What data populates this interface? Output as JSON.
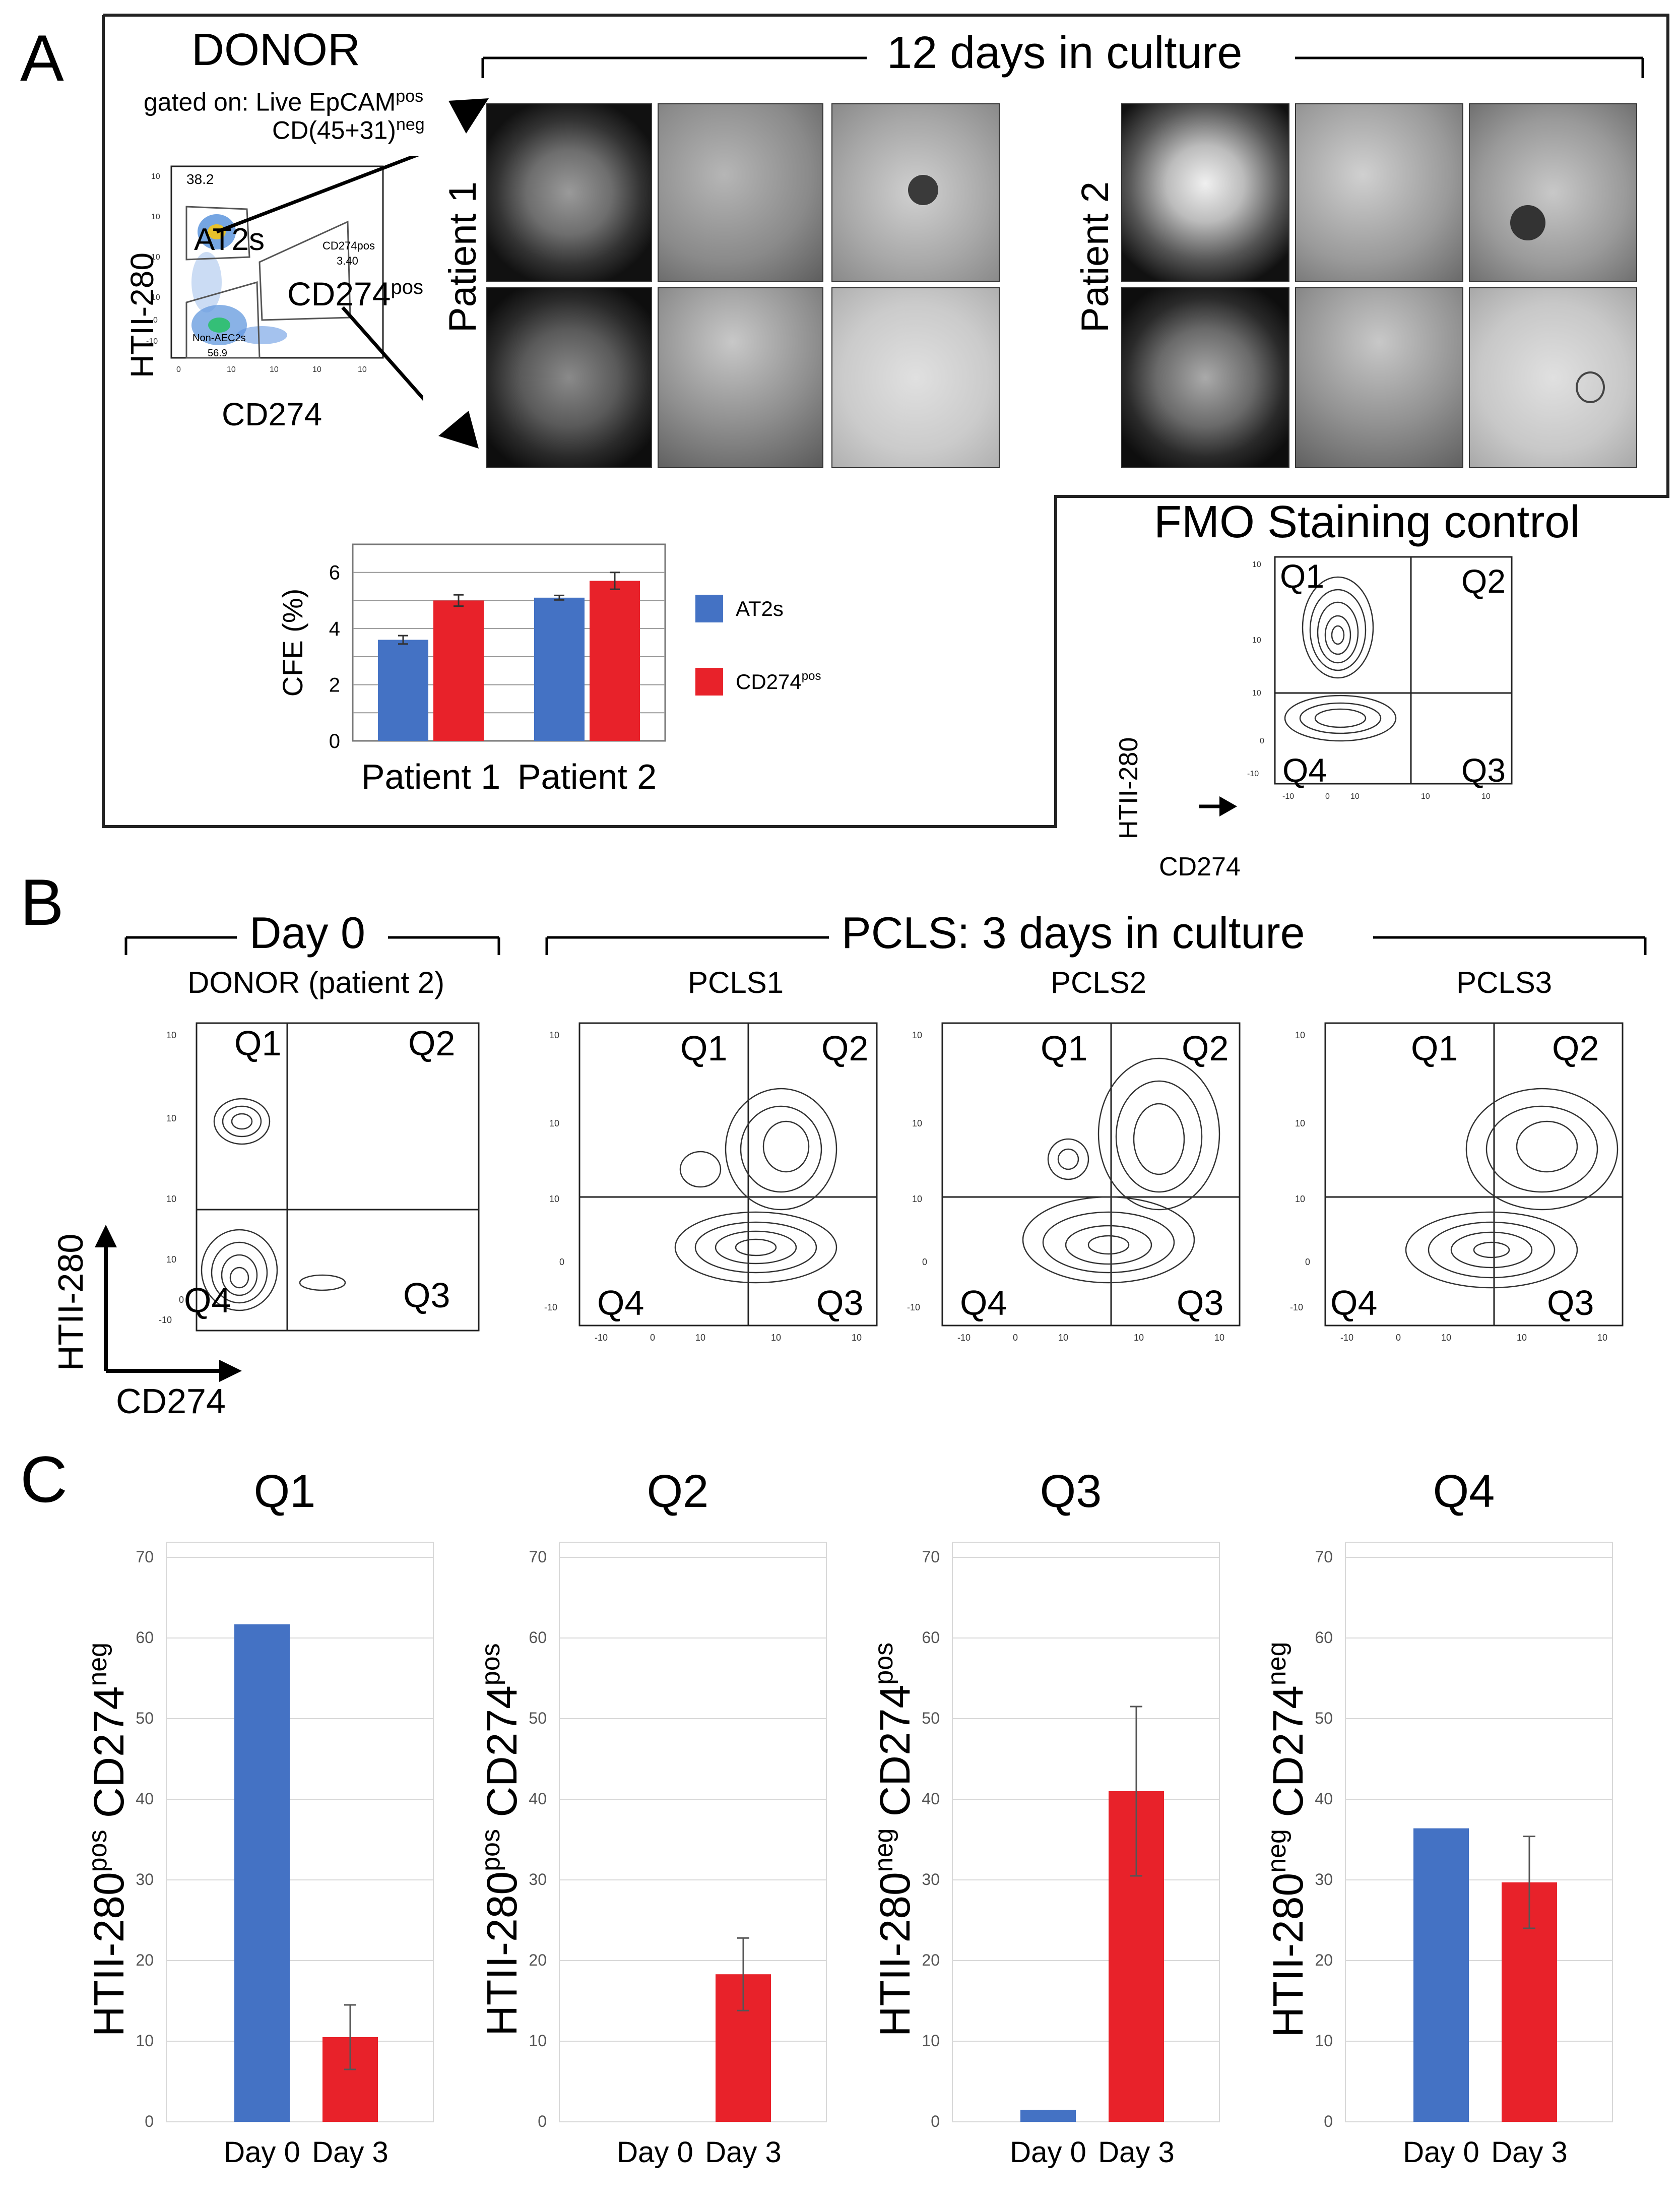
{
  "panels": {
    "A": "A",
    "B": "B",
    "C": "C"
  },
  "panel_a": {
    "donor_title": "DONOR",
    "gating_line1": "gated on: Live EpCAM",
    "gating_line1_sup": "pos",
    "gating_line2": "CD(45+31)",
    "gating_line2_sup": "neg",
    "culture_title": "12 days in culture",
    "patient1": "Patient 1",
    "patient2": "Patient 2",
    "dot_plot": {
      "ylabel": "HTII-280",
      "xlabel": "CD274",
      "gate_at2s_label": "AT2s",
      "gate_at2s_value": "38.2",
      "gate_cd274_label": "CD274",
      "gate_cd274_sup": "pos",
      "gate_cd274_small": "CD274pos",
      "gate_cd274_value": "3.40",
      "gate_nonaec_label": "Non-AEC2s",
      "gate_nonaec_value": "56.9"
    },
    "fmo": {
      "title": "FMO Staining control",
      "q1": "Q1",
      "q2": "Q2",
      "q3": "Q3",
      "q4": "Q4",
      "ylabel": "HTII-280",
      "xlabel": "CD274"
    },
    "legend": {
      "at2s": "AT2s",
      "cd274": "CD274",
      "cd274_sup": "pos"
    }
  },
  "panel_b": {
    "day0_title": "Day 0",
    "pcls_title": "PCLS: 3 days in culture",
    "plots": [
      {
        "label": "DONOR (patient 2)"
      },
      {
        "label": "PCLS1"
      },
      {
        "label": "PCLS2"
      },
      {
        "label": "PCLS3"
      }
    ],
    "quadrants": [
      "Q1",
      "Q2",
      "Q3",
      "Q4"
    ],
    "ylabel": "HTII-280",
    "xlabel": "CD274"
  },
  "colors": {
    "blue": "#4472c4",
    "red": "#e8222a"
  },
  "chart_data": [
    {
      "type": "bar",
      "ylabel": "CFE (%)",
      "categories": [
        "Patient 1",
        "Patient 2"
      ],
      "series": [
        {
          "name": "AT2s",
          "values": [
            3.6,
            5.1
          ],
          "errors": [
            0.15,
            0.08
          ],
          "color": "#4472c4"
        },
        {
          "name": "CD274pos",
          "values": [
            5.0,
            5.7
          ],
          "errors": [
            0.2,
            0.3
          ],
          "color": "#e8222a"
        }
      ],
      "yticks": [
        0,
        2,
        4,
        6
      ],
      "ylim": [
        0,
        7
      ],
      "grid": true,
      "legend": "right"
    },
    {
      "type": "bar",
      "title": "Q1",
      "ylabel": "HTII-280",
      "ylabel_sup": "pos",
      "ylabel2": " CD274",
      "ylabel2_sup": "neg",
      "categories": [
        "Day 0",
        "Day 3"
      ],
      "values": [
        61.7,
        10.5
      ],
      "errors": [
        null,
        4.0
      ],
      "colors": [
        "#4472c4",
        "#e8222a"
      ],
      "yticks": [
        0,
        10,
        20,
        30,
        40,
        50,
        60,
        70
      ],
      "ylim": [
        0,
        70
      ],
      "grid": true
    },
    {
      "type": "bar",
      "title": "Q2",
      "ylabel": "HTII-280",
      "ylabel_sup": "pos",
      "ylabel2": " CD274",
      "ylabel2_sup": "pos",
      "categories": [
        "Day 0",
        "Day 3"
      ],
      "values": [
        0,
        18.3
      ],
      "errors": [
        null,
        4.5
      ],
      "colors": [
        "#4472c4",
        "#e8222a"
      ],
      "yticks": [
        0,
        10,
        20,
        30,
        40,
        50,
        60,
        70
      ],
      "ylim": [
        0,
        70
      ],
      "grid": true
    },
    {
      "type": "bar",
      "title": "Q3",
      "ylabel": "HTII-280",
      "ylabel_sup": "neg",
      "ylabel2": " CD274",
      "ylabel2_sup": "pos",
      "categories": [
        "Day 0",
        "Day 3"
      ],
      "values": [
        1.5,
        41.0
      ],
      "errors": [
        null,
        10.5
      ],
      "colors": [
        "#4472c4",
        "#e8222a"
      ],
      "yticks": [
        0,
        10,
        20,
        30,
        40,
        50,
        60,
        70
      ],
      "ylim": [
        0,
        70
      ],
      "grid": true
    },
    {
      "type": "bar",
      "title": "Q4",
      "ylabel": "HTII-280",
      "ylabel_sup": "neg",
      "ylabel2": " CD274",
      "ylabel2_sup": "neg",
      "categories": [
        "Day 0",
        "Day 3"
      ],
      "values": [
        36.4,
        29.7
      ],
      "errors": [
        null,
        5.7
      ],
      "colors": [
        "#4472c4",
        "#e8222a"
      ],
      "yticks": [
        0,
        10,
        20,
        30,
        40,
        50,
        60,
        70
      ],
      "ylim": [
        0,
        70
      ],
      "grid": true
    }
  ]
}
